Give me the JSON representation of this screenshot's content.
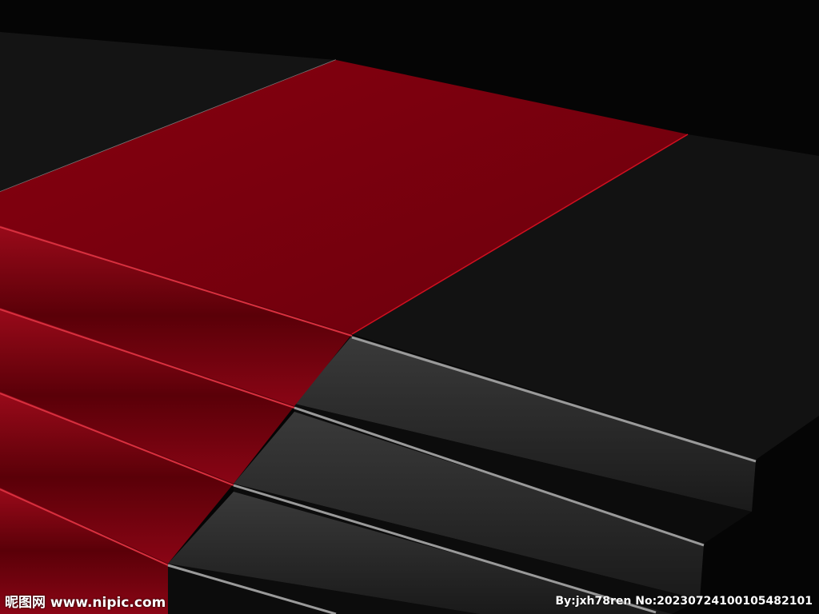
{
  "watermark": {
    "site": "昵图网 www.nipic.com",
    "credit": "By:jxh78ren No:20230724100105482101"
  },
  "colors": {
    "carpet": "#7a000e",
    "stairs": "#111111",
    "background": "#050505"
  }
}
